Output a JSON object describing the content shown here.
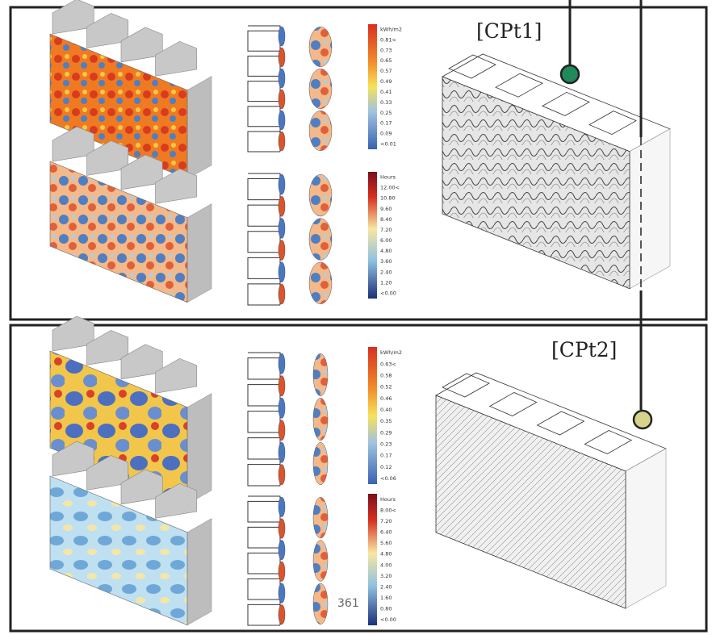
{
  "panels": [
    {
      "label": "[CPt1]",
      "legends": [
        {
          "title": "kWh/m2",
          "labels": [
            "0.81<",
            "0.73",
            "0.65",
            "0.57",
            "0.49",
            "0.41",
            "0.33",
            "0.25",
            "0.17",
            "0.09",
            "<0.01"
          ]
        },
        {
          "title": "Hours",
          "labels": [
            "12.00<",
            "10.80",
            "9.60",
            "8.40",
            "7.20",
            "6.00",
            "4.80",
            "3.60",
            "2.40",
            "1.20",
            "<0.00"
          ]
        }
      ]
    },
    {
      "label": "[CPt2]",
      "legends": [
        {
          "title": "kWh/m2",
          "labels": [
            "0.63<",
            "0.58",
            "0.52",
            "0.46",
            "0.40",
            "0.35",
            "0.29",
            "0.23",
            "0.17",
            "0.12",
            "<0.06"
          ]
        },
        {
          "title": "Hours",
          "labels": [
            "8.00<",
            "7.20",
            "6.40",
            "5.60",
            "4.80",
            "4.00",
            "3.20",
            "2.40",
            "1.60",
            "0.80",
            "<0.00"
          ]
        }
      ]
    }
  ],
  "page_number": "361"
}
